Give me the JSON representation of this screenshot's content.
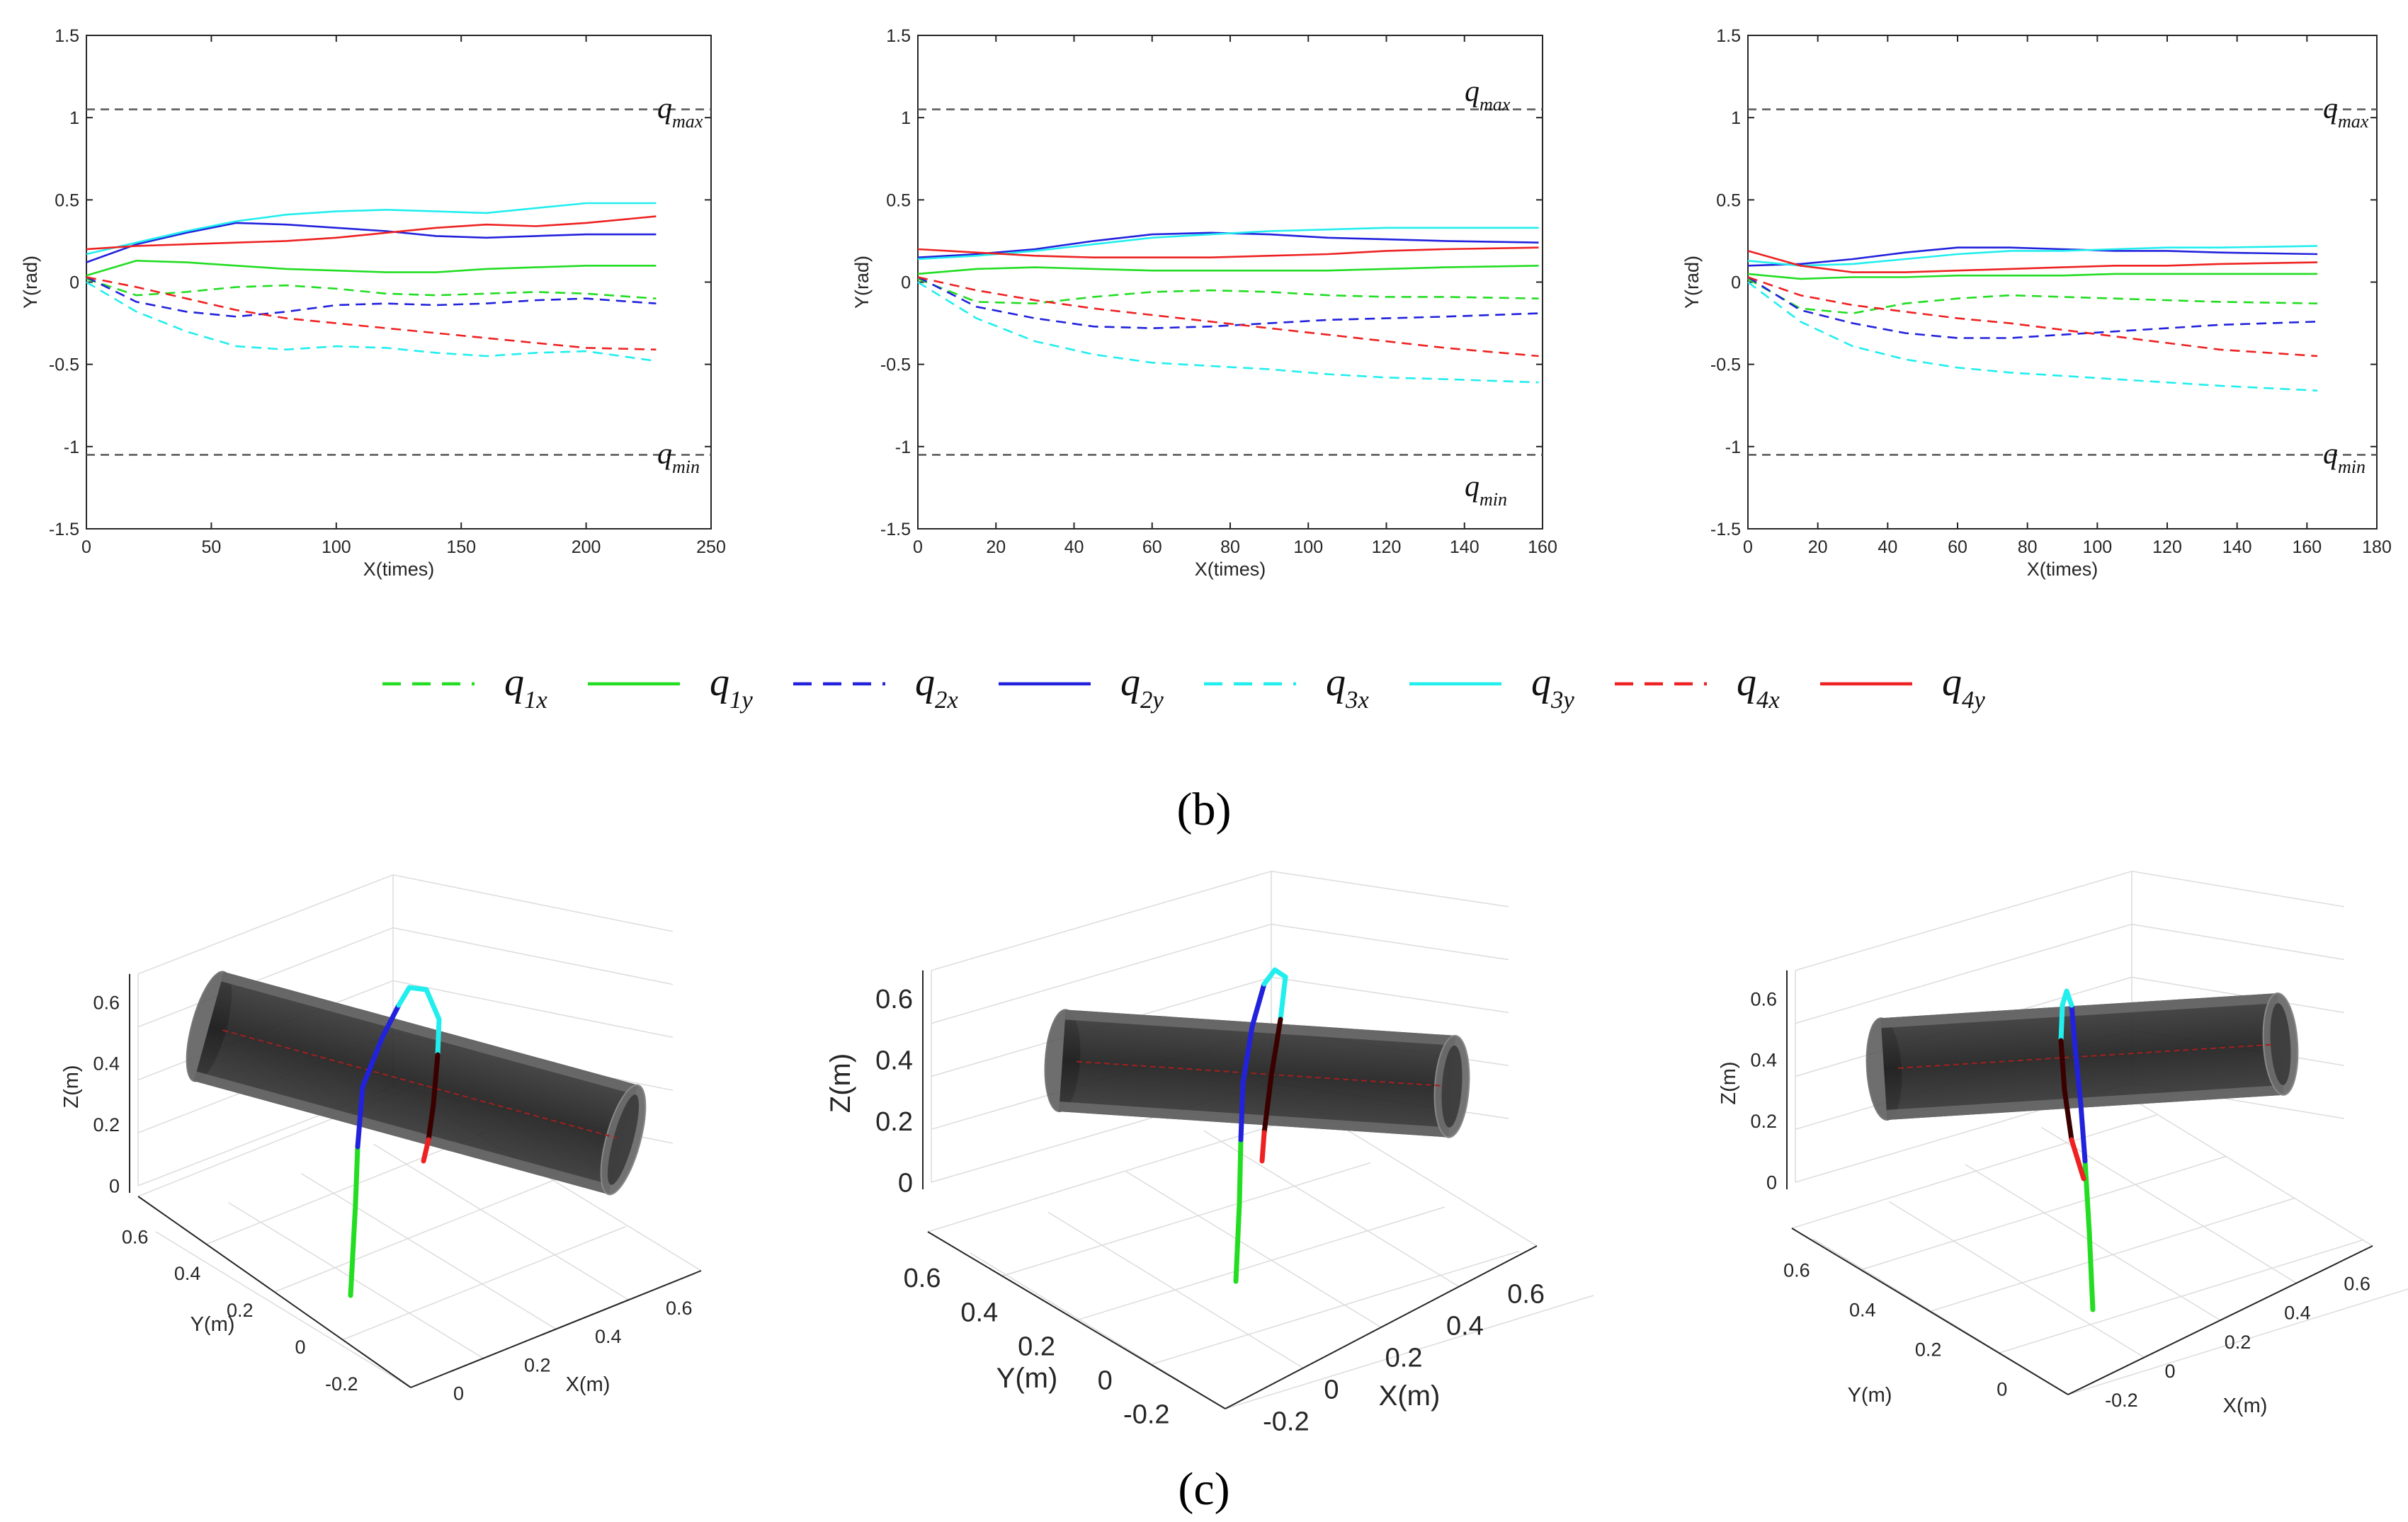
{
  "figure": {
    "label_b": "(b)",
    "label_c": "(c)"
  },
  "colors": {
    "q1": "#22dd22",
    "q2": "#2222dd",
    "q3": "#22eeee",
    "q4": "#ee2222",
    "limit": "#555555",
    "tube": "#2b2b2b",
    "axis": "#262626"
  },
  "legend": [
    {
      "sym": "q",
      "sub": "1x",
      "series": "q1",
      "style": "dashed"
    },
    {
      "sym": "q",
      "sub": "1y",
      "series": "q1",
      "style": "solid"
    },
    {
      "sym": "q",
      "sub": "2x",
      "series": "q2",
      "style": "dashed"
    },
    {
      "sym": "q",
      "sub": "2y",
      "series": "q2",
      "style": "solid"
    },
    {
      "sym": "q",
      "sub": "3x",
      "series": "q3",
      "style": "dashed"
    },
    {
      "sym": "q",
      "sub": "3y",
      "series": "q3",
      "style": "solid"
    },
    {
      "sym": "q",
      "sub": "4x",
      "series": "q4",
      "style": "dashed"
    },
    {
      "sym": "q",
      "sub": "4y",
      "series": "q4",
      "style": "solid"
    }
  ],
  "chart_data": [
    {
      "type": "line",
      "xlabel": "X(times)",
      "ylabel": "Y(rad)",
      "xlim": [
        0,
        250
      ],
      "ylim": [
        -1.5,
        1.5
      ],
      "xticks": [
        "0",
        "50",
        "100",
        "150",
        "200",
        "250"
      ],
      "yticks": [
        "-1.5",
        "-1",
        "-0.5",
        "0",
        "0.5",
        "1",
        "1.5"
      ],
      "limits": [
        {
          "name": "q_max",
          "sym": "q",
          "sub": "max",
          "value": 1.05
        },
        {
          "name": "q_min",
          "sym": "q",
          "sub": "min",
          "value": -1.05
        }
      ],
      "series": [
        {
          "name": "q1x",
          "color": "q1",
          "dash": true,
          "x": [
            0,
            20,
            40,
            60,
            80,
            100,
            120,
            140,
            160,
            180,
            200,
            228
          ],
          "values": [
            0.02,
            -0.08,
            -0.06,
            -0.03,
            -0.02,
            -0.04,
            -0.07,
            -0.08,
            -0.07,
            -0.06,
            -0.07,
            -0.1
          ]
        },
        {
          "name": "q1y",
          "color": "q1",
          "dash": false,
          "x": [
            0,
            20,
            40,
            60,
            80,
            100,
            120,
            140,
            160,
            180,
            200,
            228
          ],
          "values": [
            0.04,
            0.13,
            0.12,
            0.1,
            0.08,
            0.07,
            0.06,
            0.06,
            0.08,
            0.09,
            0.1,
            0.1
          ]
        },
        {
          "name": "q2x",
          "color": "q2",
          "dash": true,
          "x": [
            0,
            20,
            40,
            60,
            80,
            100,
            120,
            140,
            160,
            180,
            200,
            228
          ],
          "values": [
            0.03,
            -0.12,
            -0.18,
            -0.21,
            -0.18,
            -0.14,
            -0.13,
            -0.14,
            -0.13,
            -0.11,
            -0.1,
            -0.13
          ]
        },
        {
          "name": "q2y",
          "color": "q2",
          "dash": false,
          "x": [
            0,
            20,
            40,
            60,
            80,
            100,
            120,
            140,
            160,
            180,
            200,
            228
          ],
          "values": [
            0.12,
            0.23,
            0.3,
            0.36,
            0.35,
            0.33,
            0.31,
            0.28,
            0.27,
            0.28,
            0.29,
            0.29
          ]
        },
        {
          "name": "q3x",
          "color": "q3",
          "dash": true,
          "x": [
            0,
            20,
            40,
            60,
            80,
            100,
            120,
            140,
            160,
            180,
            200,
            228
          ],
          "values": [
            0.0,
            -0.18,
            -0.3,
            -0.39,
            -0.41,
            -0.39,
            -0.4,
            -0.43,
            -0.45,
            -0.43,
            -0.42,
            -0.48
          ]
        },
        {
          "name": "q3y",
          "color": "q3",
          "dash": false,
          "x": [
            0,
            20,
            40,
            60,
            80,
            100,
            120,
            140,
            160,
            180,
            200,
            228
          ],
          "values": [
            0.17,
            0.24,
            0.31,
            0.37,
            0.41,
            0.43,
            0.44,
            0.43,
            0.42,
            0.45,
            0.48,
            0.48
          ]
        },
        {
          "name": "q4x",
          "color": "q4",
          "dash": true,
          "x": [
            0,
            20,
            40,
            60,
            80,
            100,
            120,
            140,
            160,
            180,
            200,
            228
          ],
          "values": [
            0.03,
            -0.03,
            -0.1,
            -0.17,
            -0.22,
            -0.25,
            -0.28,
            -0.31,
            -0.34,
            -0.37,
            -0.4,
            -0.41
          ]
        },
        {
          "name": "q4y",
          "color": "q4",
          "dash": false,
          "x": [
            0,
            20,
            40,
            60,
            80,
            100,
            120,
            140,
            160,
            180,
            200,
            228
          ],
          "values": [
            0.2,
            0.22,
            0.23,
            0.24,
            0.25,
            0.27,
            0.3,
            0.33,
            0.35,
            0.34,
            0.36,
            0.4
          ]
        }
      ]
    },
    {
      "type": "line",
      "xlabel": "X(times)",
      "ylabel": "Y(rad)",
      "xlim": [
        0,
        160
      ],
      "ylim": [
        -1.5,
        1.5
      ],
      "xticks": [
        "0",
        "20",
        "40",
        "60",
        "80",
        "100",
        "120",
        "140",
        "160"
      ],
      "yticks": [
        "-1.5",
        "-1",
        "-0.5",
        "0",
        "0.5",
        "1",
        "1.5"
      ],
      "limits": [
        {
          "name": "q_max",
          "sym": "q",
          "sub": "max",
          "value": 1.05
        },
        {
          "name": "q_min",
          "sym": "q",
          "sub": "min",
          "value": -1.05
        }
      ],
      "series": [
        {
          "name": "q1x",
          "color": "q1",
          "dash": true,
          "x": [
            0,
            15,
            30,
            45,
            60,
            75,
            90,
            105,
            120,
            135,
            159
          ],
          "values": [
            0.02,
            -0.12,
            -0.13,
            -0.09,
            -0.06,
            -0.05,
            -0.06,
            -0.08,
            -0.09,
            -0.09,
            -0.1
          ]
        },
        {
          "name": "q1y",
          "color": "q1",
          "dash": false,
          "x": [
            0,
            15,
            30,
            45,
            60,
            75,
            90,
            105,
            120,
            135,
            159
          ],
          "values": [
            0.05,
            0.08,
            0.09,
            0.08,
            0.07,
            0.07,
            0.07,
            0.07,
            0.08,
            0.09,
            0.1
          ]
        },
        {
          "name": "q2x",
          "color": "q2",
          "dash": true,
          "x": [
            0,
            15,
            30,
            45,
            60,
            75,
            90,
            105,
            120,
            135,
            159
          ],
          "values": [
            0.03,
            -0.15,
            -0.22,
            -0.27,
            -0.28,
            -0.27,
            -0.25,
            -0.23,
            -0.22,
            -0.21,
            -0.19
          ]
        },
        {
          "name": "q2y",
          "color": "q2",
          "dash": false,
          "x": [
            0,
            15,
            30,
            45,
            60,
            75,
            90,
            105,
            120,
            135,
            159
          ],
          "values": [
            0.15,
            0.17,
            0.2,
            0.25,
            0.29,
            0.3,
            0.29,
            0.27,
            0.26,
            0.25,
            0.24
          ]
        },
        {
          "name": "q3x",
          "color": "q3",
          "dash": true,
          "x": [
            0,
            15,
            30,
            45,
            60,
            75,
            90,
            105,
            120,
            135,
            159
          ],
          "values": [
            0.0,
            -0.22,
            -0.36,
            -0.44,
            -0.49,
            -0.51,
            -0.53,
            -0.56,
            -0.58,
            -0.59,
            -0.61
          ]
        },
        {
          "name": "q3y",
          "color": "q3",
          "dash": false,
          "x": [
            0,
            15,
            30,
            45,
            60,
            75,
            90,
            105,
            120,
            135,
            159
          ],
          "values": [
            0.14,
            0.16,
            0.19,
            0.23,
            0.27,
            0.29,
            0.31,
            0.32,
            0.33,
            0.33,
            0.33
          ]
        },
        {
          "name": "q4x",
          "color": "q4",
          "dash": true,
          "x": [
            0,
            15,
            30,
            45,
            60,
            75,
            90,
            105,
            120,
            135,
            159
          ],
          "values": [
            0.03,
            -0.05,
            -0.11,
            -0.16,
            -0.2,
            -0.24,
            -0.28,
            -0.32,
            -0.36,
            -0.4,
            -0.45
          ]
        },
        {
          "name": "q4y",
          "color": "q4",
          "dash": false,
          "x": [
            0,
            15,
            30,
            45,
            60,
            75,
            90,
            105,
            120,
            135,
            159
          ],
          "values": [
            0.2,
            0.18,
            0.16,
            0.15,
            0.15,
            0.15,
            0.16,
            0.17,
            0.19,
            0.2,
            0.21
          ]
        }
      ]
    },
    {
      "type": "line",
      "xlabel": "X(times)",
      "ylabel": "Y(rad)",
      "xlim": [
        0,
        180
      ],
      "ylim": [
        -1.5,
        1.5
      ],
      "xticks": [
        "0",
        "20",
        "40",
        "60",
        "80",
        "100",
        "120",
        "140",
        "160",
        "180"
      ],
      "yticks": [
        "-1.5",
        "-1",
        "-0.5",
        "0",
        "0.5",
        "1",
        "1.5"
      ],
      "limits": [
        {
          "name": "q_max",
          "sym": "q",
          "sub": "max",
          "value": 1.05
        },
        {
          "name": "q_min",
          "sym": "q",
          "sub": "min",
          "value": -1.05
        }
      ],
      "series": [
        {
          "name": "q1x",
          "color": "q1",
          "dash": true,
          "x": [
            0,
            15,
            30,
            45,
            60,
            75,
            90,
            105,
            120,
            135,
            163
          ],
          "values": [
            0.02,
            -0.16,
            -0.19,
            -0.13,
            -0.1,
            -0.08,
            -0.09,
            -0.1,
            -0.11,
            -0.12,
            -0.13
          ]
        },
        {
          "name": "q1y",
          "color": "q1",
          "dash": false,
          "x": [
            0,
            15,
            30,
            45,
            60,
            75,
            90,
            105,
            120,
            135,
            163
          ],
          "values": [
            0.05,
            0.02,
            0.03,
            0.03,
            0.04,
            0.04,
            0.04,
            0.05,
            0.05,
            0.05,
            0.05
          ]
        },
        {
          "name": "q2x",
          "color": "q2",
          "dash": true,
          "x": [
            0,
            15,
            30,
            45,
            60,
            75,
            90,
            105,
            120,
            135,
            163
          ],
          "values": [
            0.03,
            -0.17,
            -0.25,
            -0.31,
            -0.34,
            -0.34,
            -0.32,
            -0.3,
            -0.28,
            -0.26,
            -0.24
          ]
        },
        {
          "name": "q2y",
          "color": "q2",
          "dash": false,
          "x": [
            0,
            15,
            30,
            45,
            60,
            75,
            90,
            105,
            120,
            135,
            163
          ],
          "values": [
            0.1,
            0.11,
            0.14,
            0.18,
            0.21,
            0.21,
            0.2,
            0.19,
            0.19,
            0.18,
            0.17
          ]
        },
        {
          "name": "q3x",
          "color": "q3",
          "dash": true,
          "x": [
            0,
            15,
            30,
            45,
            60,
            75,
            90,
            105,
            120,
            135,
            163
          ],
          "values": [
            0.0,
            -0.24,
            -0.39,
            -0.47,
            -0.52,
            -0.55,
            -0.57,
            -0.59,
            -0.61,
            -0.63,
            -0.66
          ]
        },
        {
          "name": "q3y",
          "color": "q3",
          "dash": false,
          "x": [
            0,
            15,
            30,
            45,
            60,
            75,
            90,
            105,
            120,
            135,
            163
          ],
          "values": [
            0.13,
            0.1,
            0.11,
            0.14,
            0.17,
            0.19,
            0.19,
            0.2,
            0.21,
            0.21,
            0.22
          ]
        },
        {
          "name": "q4x",
          "color": "q4",
          "dash": true,
          "x": [
            0,
            15,
            30,
            45,
            60,
            75,
            90,
            105,
            120,
            135,
            163
          ],
          "values": [
            0.03,
            -0.08,
            -0.14,
            -0.18,
            -0.22,
            -0.25,
            -0.29,
            -0.33,
            -0.37,
            -0.41,
            -0.45
          ]
        },
        {
          "name": "q4y",
          "color": "q4",
          "dash": false,
          "x": [
            0,
            15,
            30,
            45,
            60,
            75,
            90,
            105,
            120,
            135,
            163
          ],
          "values": [
            0.19,
            0.1,
            0.06,
            0.06,
            0.07,
            0.08,
            0.09,
            0.1,
            0.1,
            0.11,
            0.12
          ]
        }
      ]
    }
  ],
  "plots_3d": [
    {
      "zlabel": "Z(m)",
      "ylabel": "Y(m)",
      "xlabel": "X(m)",
      "zticks": [
        "0",
        "0.2",
        "0.4",
        "0.6"
      ],
      "yticks": [
        "0.6",
        "0.4",
        "0.2",
        "0",
        "-0.2"
      ],
      "xticks": [
        "0",
        "0.2",
        "0.4",
        "0.6"
      ]
    },
    {
      "zlabel": "Z(m)",
      "ylabel": "Y(m)",
      "xlabel": "X(m)",
      "zticks": [
        "0",
        "0.2",
        "0.4",
        "0.6"
      ],
      "yticks": [
        "0.6",
        "0.4",
        "0.2",
        "0",
        "-0.2"
      ],
      "xticks": [
        "-0.2",
        "0",
        "0.2",
        "0.4",
        "0.6"
      ]
    },
    {
      "zlabel": "Z(m)",
      "ylabel": "Y(m)",
      "xlabel": "X(m)",
      "zticks": [
        "0",
        "0.2",
        "0.4",
        "0.6"
      ],
      "yticks": [
        "0.6",
        "0.4",
        "0.2",
        "0"
      ],
      "xticks": [
        "-0.2",
        "0",
        "0.2",
        "0.4",
        "0.6"
      ]
    }
  ]
}
